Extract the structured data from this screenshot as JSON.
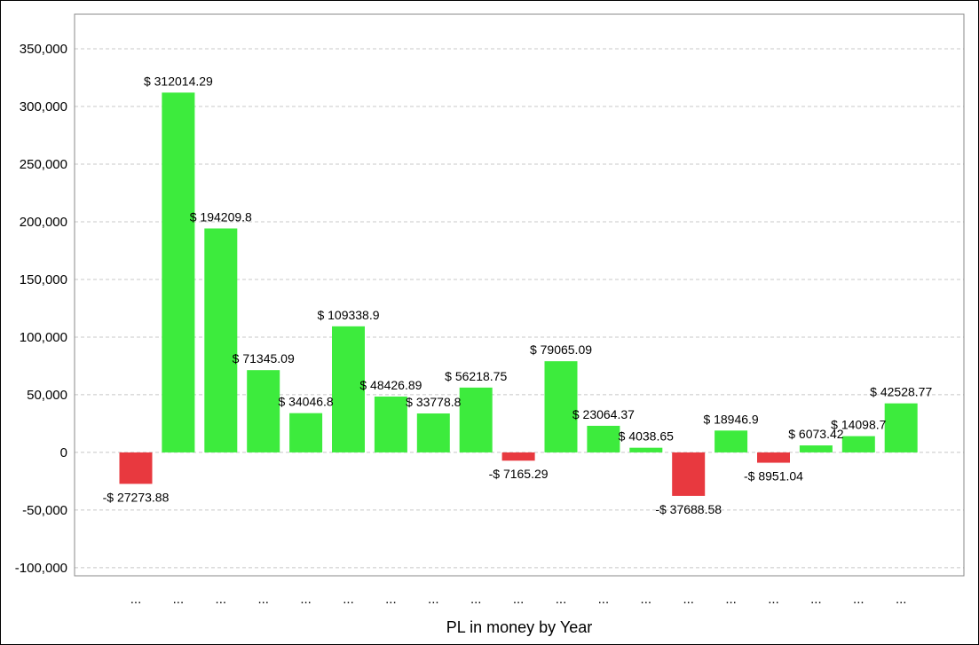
{
  "chart_data": {
    "type": "bar",
    "title": "",
    "xlabel": "PL in money by Year",
    "ylabel": "",
    "ylim": [
      -107000,
      380000
    ],
    "yticks": [
      -100000,
      -50000,
      0,
      50000,
      100000,
      150000,
      200000,
      250000,
      300000,
      350000
    ],
    "ytick_labels": [
      "-100,000",
      "-50,000",
      "0",
      "50,000",
      "100,000",
      "150,000",
      "200,000",
      "250,000",
      "300,000",
      "350,000"
    ],
    "grid": true,
    "legend": "none",
    "categories": [
      "...",
      "...",
      "...",
      "...",
      "...",
      "...",
      "...",
      "...",
      "...",
      "...",
      "...",
      "...",
      "...",
      "...",
      "...",
      "...",
      "...",
      "...",
      "..."
    ],
    "values": [
      -27273.88,
      312014.29,
      194209.8,
      71345.09,
      34046.8,
      109338.9,
      48426.89,
      33778.8,
      56218.75,
      -7165.29,
      79065.09,
      23064.37,
      4038.65,
      -37688.58,
      18946.9,
      -8951.04,
      6073.42,
      14098.7,
      42528.77
    ],
    "data_labels": [
      "-$ 27273.88",
      "$ 312014.29",
      "$ 194209.8",
      "$ 71345.09",
      "$ 34046.8",
      "$ 109338.9",
      "$ 48426.89",
      "$ 33778.8",
      "$ 56218.75",
      "-$ 7165.29",
      "$ 79065.09",
      "$ 23064.37",
      "$ 4038.65",
      "-$ 37688.58",
      "$ 18946.9",
      "-$ 8951.04",
      "$ 6073.42",
      "$ 14098.7",
      "$ 42528.77"
    ],
    "colors": {
      "positive": "#3deb3d",
      "negative": "#e8393f"
    }
  }
}
